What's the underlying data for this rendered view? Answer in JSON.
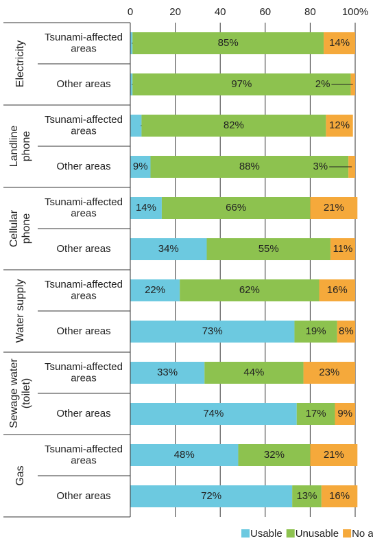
{
  "chart_data": {
    "type": "stacked_bar_h",
    "groups": [
      {
        "label": "Electricity",
        "categories": [
          "Tsunami-affected\nareas",
          "Other areas"
        ]
      },
      {
        "label": "Landline\nphone",
        "categories": [
          "Tsunami-affected\nareas",
          "Other areas"
        ]
      },
      {
        "label": "Cellular\nphone",
        "categories": [
          "Tsunami-affected\nareas",
          "Other areas"
        ]
      },
      {
        "label": "Water supply",
        "categories": [
          "Tsunami-affected\nareas",
          "Other areas"
        ]
      },
      {
        "label": "Sewage water\n(toilet)",
        "categories": [
          "Tsunami-affected\nareas",
          "Other areas"
        ]
      },
      {
        "label": "Gas",
        "categories": [
          "Tsunami-affected\nareas",
          "Other areas"
        ]
      }
    ],
    "series": [
      {
        "name": "Usable",
        "color": "#6cc9e0",
        "values": [
          1,
          1,
          5,
          9,
          14,
          34,
          22,
          73,
          33,
          74,
          48,
          72
        ],
        "value_labels": [
          "1%",
          "1%",
          "5%",
          "9%",
          "14%",
          "34%",
          "22%",
          "73%",
          "33%",
          "74%",
          "48%",
          "72%"
        ]
      },
      {
        "name": "Unusable",
        "color": "#8dc24f",
        "values": [
          85,
          97,
          82,
          88,
          66,
          55,
          62,
          19,
          44,
          17,
          32,
          13
        ],
        "value_labels": [
          "85%",
          "97%",
          "82%",
          "88%",
          "66%",
          "55%",
          "62%",
          "19%",
          "44%",
          "17%",
          "32%",
          "13%"
        ]
      },
      {
        "name": "No answer",
        "color": "#f5a93b",
        "values": [
          14,
          2,
          12,
          3,
          21,
          11,
          16,
          8,
          23,
          9,
          21,
          16
        ],
        "value_labels": [
          "14%",
          "2%",
          "12%",
          "3%",
          "21%",
          "11%",
          "16%",
          "8%",
          "23%",
          "9%",
          "21%",
          "16%"
        ]
      }
    ],
    "xlim": [
      0,
      100
    ],
    "xticks": [
      0,
      20,
      40,
      60,
      80,
      {
        "value": 100,
        "label": "100%"
      }
    ],
    "grid": true
  }
}
